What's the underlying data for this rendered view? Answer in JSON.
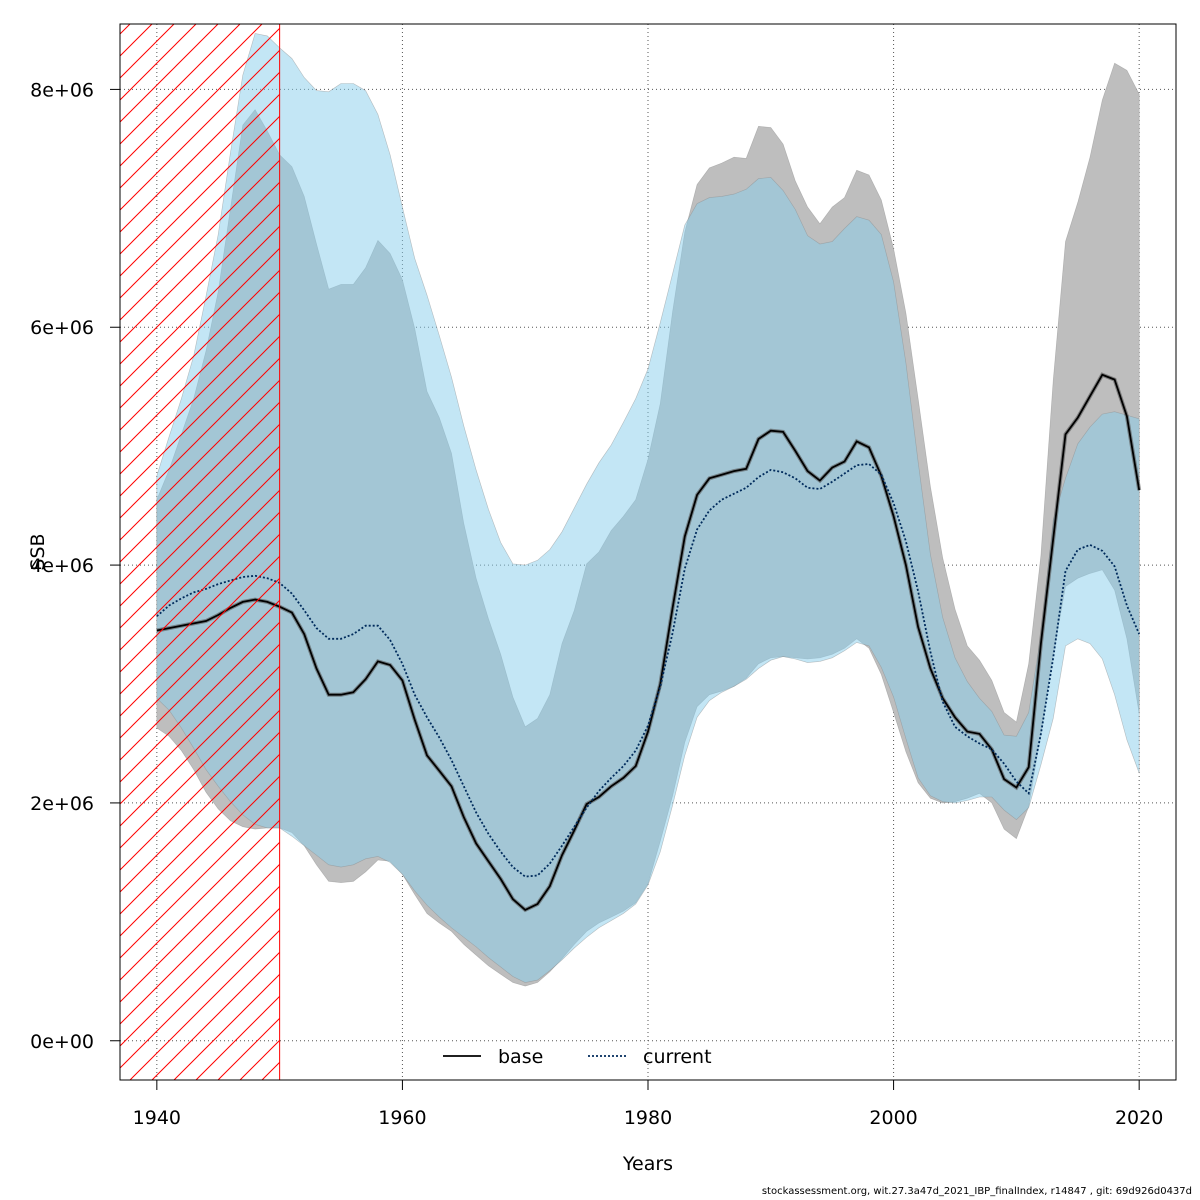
{
  "chart_data": {
    "type": "area",
    "xlabel": "Years",
    "ylabel": "SSB",
    "xlim": [
      1937,
      2023
    ],
    "ylim": [
      -330000,
      8550000
    ],
    "x_ticks": [
      1940,
      1960,
      1980,
      2000,
      2020
    ],
    "x_tick_labels": [
      "1940",
      "1960",
      "1980",
      "2000",
      "2020"
    ],
    "y_ticks": [
      0,
      2000000,
      4000000,
      6000000,
      8000000
    ],
    "y_tick_labels": [
      "0e+00",
      "2e+06",
      "4e+06",
      "6e+06",
      "8e+06"
    ],
    "grid": true,
    "legend_position": "bottom-center",
    "hatched_region": {
      "from": 1937,
      "to": 1950
    },
    "years": [
      1940,
      1941,
      1942,
      1943,
      1944,
      1945,
      1946,
      1947,
      1948,
      1949,
      1950,
      1951,
      1952,
      1953,
      1954,
      1955,
      1956,
      1957,
      1958,
      1959,
      1960,
      1961,
      1962,
      1963,
      1964,
      1965,
      1966,
      1967,
      1968,
      1969,
      1970,
      1971,
      1972,
      1973,
      1974,
      1975,
      1976,
      1977,
      1978,
      1979,
      1980,
      1981,
      1982,
      1983,
      1984,
      1985,
      1986,
      1987,
      1988,
      1989,
      1990,
      1991,
      1992,
      1993,
      1994,
      1995,
      1996,
      1997,
      1998,
      1999,
      2000,
      2001,
      2002,
      2003,
      2004,
      2005,
      2006,
      2007,
      2008,
      2009,
      2010,
      2011,
      2012,
      2013,
      2014,
      2015,
      2016,
      2017,
      2018,
      2019,
      2020
    ],
    "series": [
      {
        "name": "base",
        "color": "#000000",
        "band_color": "#bebebe",
        "line_style": "solid",
        "values": [
          3450000,
          3470000,
          3490000,
          3510000,
          3530000,
          3580000,
          3640000,
          3690000,
          3710000,
          3690000,
          3650000,
          3600000,
          3420000,
          3130000,
          2910000,
          2910000,
          2930000,
          3040000,
          3190000,
          3160000,
          3030000,
          2700000,
          2400000,
          2270000,
          2140000,
          1880000,
          1660000,
          1510000,
          1360000,
          1190000,
          1100000,
          1150000,
          1300000,
          1560000,
          1770000,
          1990000,
          2050000,
          2140000,
          2210000,
          2310000,
          2600000,
          3000000,
          3640000,
          4240000,
          4590000,
          4730000,
          4760000,
          4790000,
          4810000,
          5060000,
          5130000,
          5120000,
          4960000,
          4790000,
          4710000,
          4820000,
          4870000,
          5040000,
          4990000,
          4750000,
          4410000,
          4000000,
          3480000,
          3130000,
          2880000,
          2720000,
          2600000,
          2580000,
          2450000,
          2200000,
          2130000,
          2300000,
          3340000,
          4220000,
          5100000,
          5240000,
          5420000,
          5600000,
          5560000,
          5250000,
          4630000
        ],
        "lower": [
          2630000,
          2560000,
          2440000,
          2280000,
          2090000,
          1950000,
          1850000,
          1800000,
          1780000,
          1790000,
          1790000,
          1750000,
          1640000,
          1480000,
          1340000,
          1330000,
          1340000,
          1420000,
          1520000,
          1510000,
          1400000,
          1230000,
          1070000,
          990000,
          920000,
          810000,
          720000,
          630000,
          560000,
          490000,
          460000,
          490000,
          580000,
          690000,
          810000,
          920000,
          990000,
          1040000,
          1090000,
          1160000,
          1320000,
          1680000,
          2060000,
          2510000,
          2810000,
          2910000,
          2940000,
          2980000,
          3050000,
          3170000,
          3220000,
          3230000,
          3220000,
          3210000,
          3220000,
          3250000,
          3300000,
          3380000,
          3300000,
          3080000,
          2760000,
          2430000,
          2170000,
          2040000,
          2000000,
          2010000,
          2040000,
          2080000,
          2000000,
          1780000,
          1700000,
          1970000,
          2580000,
          3240000,
          3820000,
          3890000,
          3930000,
          3960000,
          3790000,
          3380000,
          2750000
        ],
        "upper": [
          4550000,
          4800000,
          5100000,
          5400000,
          5800000,
          6300000,
          7000000,
          7700000,
          7830000,
          7650000,
          7450000,
          7350000,
          7100000,
          6700000,
          6320000,
          6360000,
          6360000,
          6500000,
          6730000,
          6620000,
          6400000,
          5990000,
          5460000,
          5240000,
          4940000,
          4350000,
          3890000,
          3550000,
          3250000,
          2890000,
          2640000,
          2710000,
          2910000,
          3340000,
          3620000,
          4010000,
          4110000,
          4290000,
          4410000,
          4550000,
          4890000,
          5360000,
          6130000,
          6800000,
          7200000,
          7340000,
          7380000,
          7430000,
          7420000,
          7690000,
          7680000,
          7540000,
          7230000,
          7010000,
          6870000,
          7010000,
          7090000,
          7320000,
          7280000,
          7070000,
          6660000,
          6120000,
          5400000,
          4660000,
          4060000,
          3630000,
          3320000,
          3200000,
          3030000,
          2760000,
          2680000,
          3170000,
          4080000,
          5550000,
          6720000,
          7050000,
          7430000,
          7910000,
          8220000,
          8160000,
          7960000
        ]
      },
      {
        "name": "current",
        "color": "#002b5c",
        "band_color": "#87ceeb",
        "line_style": "dotted",
        "values": [
          3570000,
          3660000,
          3720000,
          3770000,
          3800000,
          3840000,
          3870000,
          3900000,
          3910000,
          3890000,
          3850000,
          3760000,
          3620000,
          3470000,
          3380000,
          3380000,
          3420000,
          3490000,
          3490000,
          3370000,
          3170000,
          2910000,
          2720000,
          2550000,
          2360000,
          2140000,
          1920000,
          1740000,
          1590000,
          1460000,
          1380000,
          1390000,
          1490000,
          1640000,
          1800000,
          1960000,
          2100000,
          2210000,
          2310000,
          2440000,
          2650000,
          2980000,
          3430000,
          3970000,
          4300000,
          4460000,
          4550000,
          4600000,
          4650000,
          4740000,
          4800000,
          4780000,
          4730000,
          4650000,
          4640000,
          4700000,
          4770000,
          4840000,
          4850000,
          4760000,
          4520000,
          4200000,
          3780000,
          3270000,
          2850000,
          2640000,
          2560000,
          2500000,
          2450000,
          2330000,
          2180000,
          2080000,
          2580000,
          3220000,
          3950000,
          4130000,
          4170000,
          4120000,
          3990000,
          3660000,
          3420000
        ],
        "lower": [
          2880000,
          2780000,
          2630000,
          2460000,
          2280000,
          2140000,
          2010000,
          1900000,
          1820000,
          1790000,
          1790000,
          1720000,
          1640000,
          1560000,
          1480000,
          1460000,
          1480000,
          1530000,
          1550000,
          1500000,
          1400000,
          1260000,
          1140000,
          1040000,
          950000,
          870000,
          790000,
          700000,
          620000,
          540000,
          490000,
          510000,
          590000,
          680000,
          780000,
          870000,
          950000,
          1010000,
          1070000,
          1150000,
          1310000,
          1590000,
          1980000,
          2400000,
          2720000,
          2860000,
          2930000,
          2980000,
          3040000,
          3130000,
          3200000,
          3230000,
          3210000,
          3180000,
          3190000,
          3220000,
          3280000,
          3350000,
          3320000,
          3140000,
          2890000,
          2540000,
          2210000,
          2060000,
          2010000,
          2000000,
          2020000,
          2050000,
          2050000,
          1940000,
          1860000,
          1960000,
          2320000,
          2710000,
          3320000,
          3380000,
          3340000,
          3210000,
          2910000,
          2530000,
          2250000
        ],
        "upper": [
          4750000,
          5080000,
          5400000,
          5760000,
          6260000,
          6780000,
          7470000,
          8120000,
          8470000,
          8450000,
          8350000,
          8260000,
          8100000,
          7990000,
          7980000,
          8050000,
          8050000,
          7990000,
          7790000,
          7450000,
          7010000,
          6580000,
          6270000,
          5930000,
          5580000,
          5170000,
          4800000,
          4470000,
          4190000,
          4010000,
          4000000,
          4040000,
          4130000,
          4280000,
          4480000,
          4680000,
          4860000,
          5010000,
          5200000,
          5400000,
          5650000,
          6040000,
          6450000,
          6860000,
          7040000,
          7090000,
          7100000,
          7120000,
          7160000,
          7250000,
          7260000,
          7150000,
          6990000,
          6770000,
          6700000,
          6720000,
          6830000,
          6930000,
          6900000,
          6780000,
          6380000,
          5700000,
          4870000,
          4090000,
          3560000,
          3220000,
          3020000,
          2880000,
          2770000,
          2570000,
          2560000,
          2760000,
          3410000,
          4380000,
          4730000,
          5020000,
          5160000,
          5270000,
          5290000,
          5260000,
          5230000
        ]
      }
    ]
  },
  "legend": {
    "items": [
      {
        "label": "base",
        "color": "#000000",
        "style": "solid"
      },
      {
        "label": "current",
        "color": "#002b5c",
        "style": "dotted"
      }
    ]
  },
  "footer": {
    "text": "stockassessment.org, wit.27.3a47d_2021_IBP_finalIndex, r14847 , git: 69d926d0437d"
  }
}
